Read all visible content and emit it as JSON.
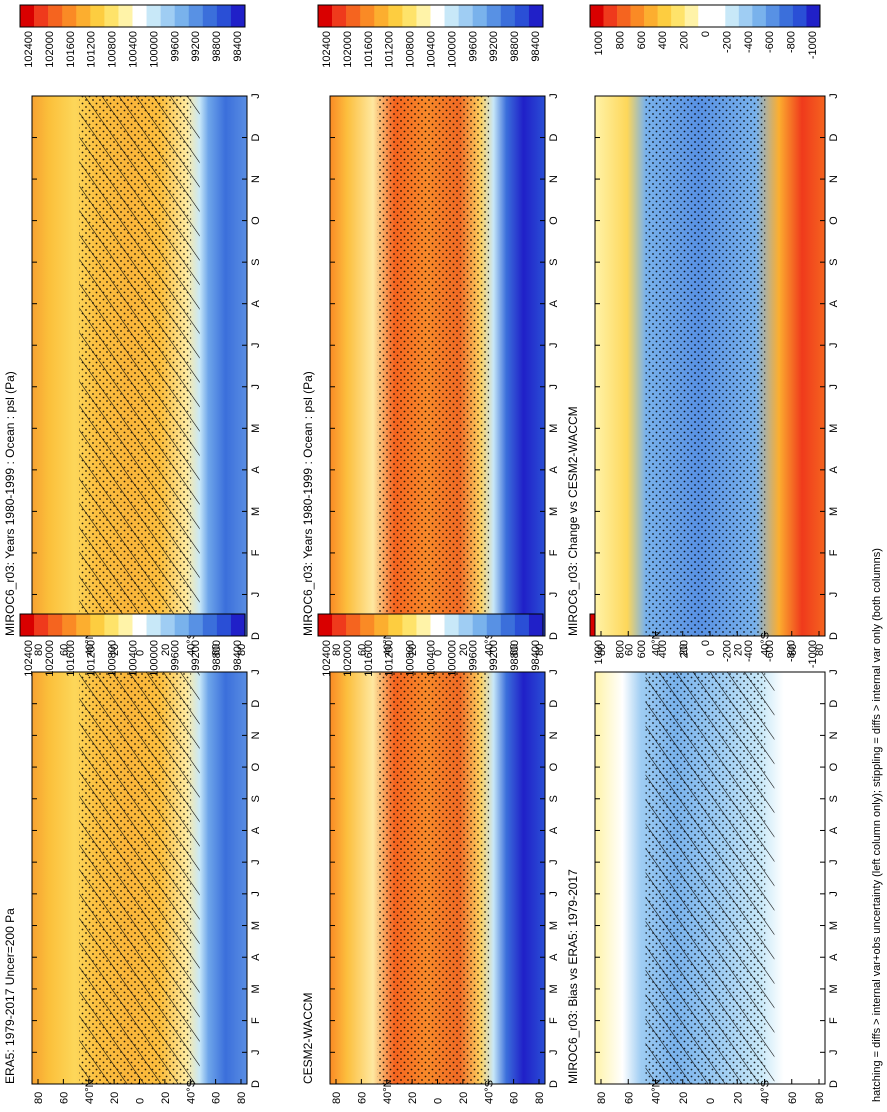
{
  "footer_note": "hatching = diffs > internal var+obs uncertainty (left column only); stippling = diffs > internal var only (both columns)",
  "colors": {
    "abs_scale": [
      "#d90000",
      "#ef3a1c",
      "#f5641f",
      "#fa8a25",
      "#fcae2f",
      "#fdcd40",
      "#fee36a",
      "#fff3a8",
      "#ffffff",
      "#c8e8f8",
      "#9fcdf3",
      "#79b2ec",
      "#5891e4",
      "#3b6fdb",
      "#2a4fd6",
      "#2020c8"
    ],
    "diff_scale": [
      "#d90000",
      "#ef3a1c",
      "#f5641f",
      "#fa8a25",
      "#fcae2f",
      "#fdcd40",
      "#fee36a",
      "#fff3a8",
      "#ffffff",
      "#ffffff",
      "#c8e8f8",
      "#9fcdf3",
      "#79b2ec",
      "#5891e4",
      "#3b6fdb",
      "#2a4fd6",
      "#2020c8"
    ]
  },
  "chart_data": [
    {
      "id": "miroc6-climatology",
      "type": "heatmap",
      "title": "MIROC6_r03: Years 1980-1999 : Ocean : psl (Pa)",
      "x_ticks": [
        "D",
        "J",
        "F",
        "M",
        "A",
        "M",
        "J",
        "J",
        "A",
        "S",
        "O",
        "N",
        "D",
        "J"
      ],
      "y_ticks": [
        "80",
        "60",
        "40°N",
        "20",
        "0",
        "20",
        "40°S",
        "60",
        "80"
      ],
      "colorbar_labels": [
        "102400",
        "102000",
        "101600",
        "101200",
        "100800",
        "100400",
        "100000",
        "99600",
        "99200",
        "98800",
        "98400"
      ],
      "hatched": true,
      "stippled": true
    },
    {
      "id": "miroc6-climatology-right",
      "type": "heatmap",
      "title": "MIROC6_r03: Years 1980-1999 : Ocean : psl (Pa)",
      "x_ticks": [
        "D",
        "J",
        "F",
        "M",
        "A",
        "M",
        "J",
        "J",
        "A",
        "S",
        "O",
        "N",
        "D",
        "J"
      ],
      "y_ticks": [
        "80",
        "60",
        "40°N",
        "20",
        "0",
        "20",
        "40°S",
        "60",
        "80"
      ],
      "colorbar_labels": [
        "102400",
        "102000",
        "101600",
        "101200",
        "100800",
        "100400",
        "100000",
        "99600",
        "99200",
        "98800",
        "98400"
      ],
      "hatched": false,
      "stippled": true
    },
    {
      "id": "era5",
      "type": "heatmap",
      "title": "ERA5: 1979-2017 Uncer=200 Pa",
      "x_ticks": [
        "D",
        "J",
        "F",
        "M",
        "A",
        "M",
        "J",
        "J",
        "A",
        "S",
        "O",
        "N",
        "D",
        "J"
      ],
      "y_ticks": [
        "80",
        "60",
        "40°N",
        "20",
        "0",
        "20",
        "40°S",
        "60",
        "80"
      ],
      "colorbar_labels": [
        "102400",
        "102000",
        "101600",
        "101200",
        "100800",
        "100400",
        "100000",
        "99600",
        "99200",
        "98800",
        "98400"
      ],
      "hatched": true,
      "stippled": true
    },
    {
      "id": "cesm2",
      "type": "heatmap",
      "title": "CESM2-WACCM",
      "x_ticks": [
        "D",
        "J",
        "F",
        "M",
        "A",
        "M",
        "J",
        "J",
        "A",
        "S",
        "O",
        "N",
        "D",
        "J"
      ],
      "y_ticks": [
        "80",
        "60",
        "40°N",
        "20",
        "0",
        "20",
        "40°S",
        "60",
        "80"
      ],
      "colorbar_labels": [
        "102400",
        "102000",
        "101600",
        "101200",
        "100800",
        "100400",
        "100000",
        "99600",
        "99200",
        "98800",
        "98400"
      ],
      "hatched": false,
      "stippled": true
    },
    {
      "id": "bias",
      "type": "heatmap",
      "title": "MIROC6_r03: Bias vs ERA5: 1979-2017",
      "x_ticks": [
        "D",
        "J",
        "F",
        "M",
        "A",
        "M",
        "J",
        "J",
        "A",
        "S",
        "O",
        "N",
        "D",
        "J"
      ],
      "y_ticks": [
        "80",
        "60",
        "40°N",
        "20",
        "0",
        "20",
        "40°S",
        "60",
        "80"
      ],
      "colorbar_labels": [
        "1000",
        "800",
        "600",
        "400",
        "200",
        "0",
        "-200",
        "-400",
        "-600",
        "-800",
        "-1000"
      ],
      "hatched": true,
      "stippled": true
    },
    {
      "id": "change",
      "type": "heatmap",
      "title": "MIROC6_r03: Change vs CESM2-WACCM",
      "x_ticks": [
        "D",
        "J",
        "F",
        "M",
        "A",
        "M",
        "J",
        "J",
        "A",
        "S",
        "O",
        "N",
        "D",
        "J"
      ],
      "y_ticks": [
        "80",
        "60",
        "40°N",
        "20",
        "0",
        "20",
        "40°S",
        "60",
        "80"
      ],
      "colorbar_labels": [
        "1000",
        "800",
        "600",
        "400",
        "200",
        "0",
        "-200",
        "-400",
        "-600",
        "-800",
        "-1000"
      ],
      "hatched": false,
      "stippled": true
    }
  ]
}
